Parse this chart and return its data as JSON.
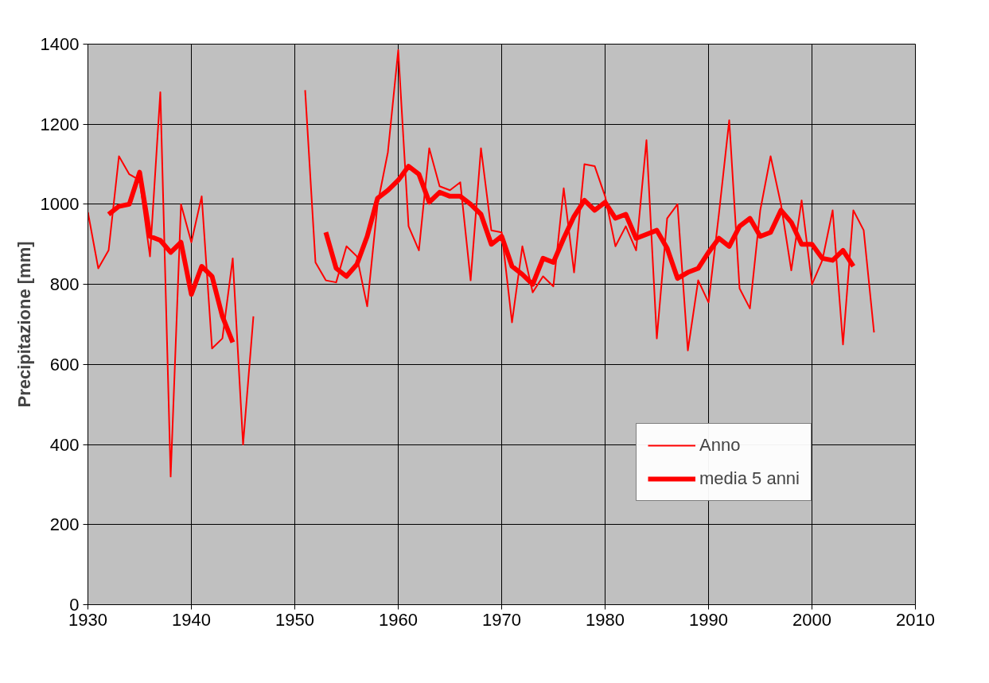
{
  "chart_data": {
    "type": "line",
    "ylabel": "Precipitazione [mm]",
    "xlim": [
      1930,
      2010
    ],
    "xticks": [
      1930,
      1940,
      1950,
      1960,
      1970,
      1980,
      1990,
      2000,
      2010
    ],
    "ylim": [
      0,
      1400
    ],
    "yticks": [
      0,
      200,
      400,
      600,
      800,
      1000,
      1200,
      1400
    ],
    "grid": true,
    "legend": "bottom right",
    "marker": "none",
    "line_style": "solid",
    "series": [
      {
        "name": "Anno",
        "color": "#ff0000",
        "x": [
          1930,
          1931,
          1932,
          1933,
          1934,
          1935,
          1936,
          1937,
          1938,
          1939,
          1940,
          1941,
          1942,
          1943,
          1944,
          1945,
          1946,
          1947,
          1948,
          1949,
          1950,
          1951,
          1952,
          1953,
          1954,
          1955,
          1956,
          1957,
          1958,
          1959,
          1960,
          1961,
          1962,
          1963,
          1964,
          1965,
          1966,
          1967,
          1968,
          1969,
          1970,
          1971,
          1972,
          1973,
          1974,
          1975,
          1976,
          1977,
          1978,
          1979,
          1980,
          1981,
          1982,
          1983,
          1984,
          1985,
          1986,
          1987,
          1988,
          1989,
          1990,
          1991,
          1992,
          1993,
          1994,
          1995,
          1996,
          1997,
          1998,
          1999,
          2000,
          2001,
          2002,
          2003,
          2004,
          2005,
          2006
        ],
        "values": [
          980,
          840,
          885,
          1120,
          1075,
          1060,
          870,
          1280,
          320,
          1000,
          905,
          1020,
          640,
          665,
          865,
          400,
          720,
          null,
          null,
          null,
          null,
          1285,
          855,
          810,
          805,
          895,
          870,
          745,
          1000,
          1130,
          1385,
          945,
          885,
          1140,
          1045,
          1035,
          1055,
          810,
          1140,
          935,
          930,
          705,
          895,
          780,
          820,
          795,
          1040,
          830,
          1100,
          1095,
          1020,
          895,
          945,
          885,
          1160,
          665,
          965,
          1000,
          635,
          810,
          755,
          975,
          1210,
          790,
          740,
          985,
          1120,
          1000,
          835,
          1010,
          800,
          860,
          985,
          650,
          985,
          935,
          680
        ]
      },
      {
        "name": "media 5 anni",
        "color": "#ff0000",
        "x": [
          1932,
          1933,
          1934,
          1935,
          1936,
          1937,
          1938,
          1939,
          1940,
          1941,
          1942,
          1943,
          1944,
          1945,
          1946,
          1947,
          1948,
          1949,
          1950,
          1951,
          1952,
          1953,
          1954,
          1955,
          1956,
          1957,
          1958,
          1959,
          1960,
          1961,
          1962,
          1963,
          1964,
          1965,
          1966,
          1967,
          1968,
          1969,
          1970,
          1971,
          1972,
          1973,
          1974,
          1975,
          1976,
          1977,
          1978,
          1979,
          1980,
          1981,
          1982,
          1983,
          1984,
          1985,
          1986,
          1987,
          1988,
          1989,
          1990,
          1991,
          1992,
          1993,
          1994,
          1995,
          1996,
          1997,
          1998,
          1999,
          2000,
          2001,
          2002,
          2003,
          2004
        ],
        "values": [
          975,
          995,
          1000,
          1080,
          920,
          910,
          880,
          905,
          775,
          845,
          820,
          720,
          655,
          null,
          null,
          null,
          null,
          null,
          null,
          null,
          null,
          930,
          840,
          820,
          850,
          920,
          1015,
          1035,
          1060,
          1095,
          1075,
          1005,
          1030,
          1020,
          1020,
          1000,
          975,
          900,
          920,
          845,
          825,
          800,
          865,
          855,
          915,
          970,
          1010,
          985,
          1005,
          965,
          975,
          915,
          925,
          935,
          890,
          815,
          830,
          840,
          880,
          915,
          895,
          945,
          965,
          920,
          930,
          985,
          955,
          900,
          900,
          865,
          860,
          885,
          845
        ]
      }
    ]
  }
}
